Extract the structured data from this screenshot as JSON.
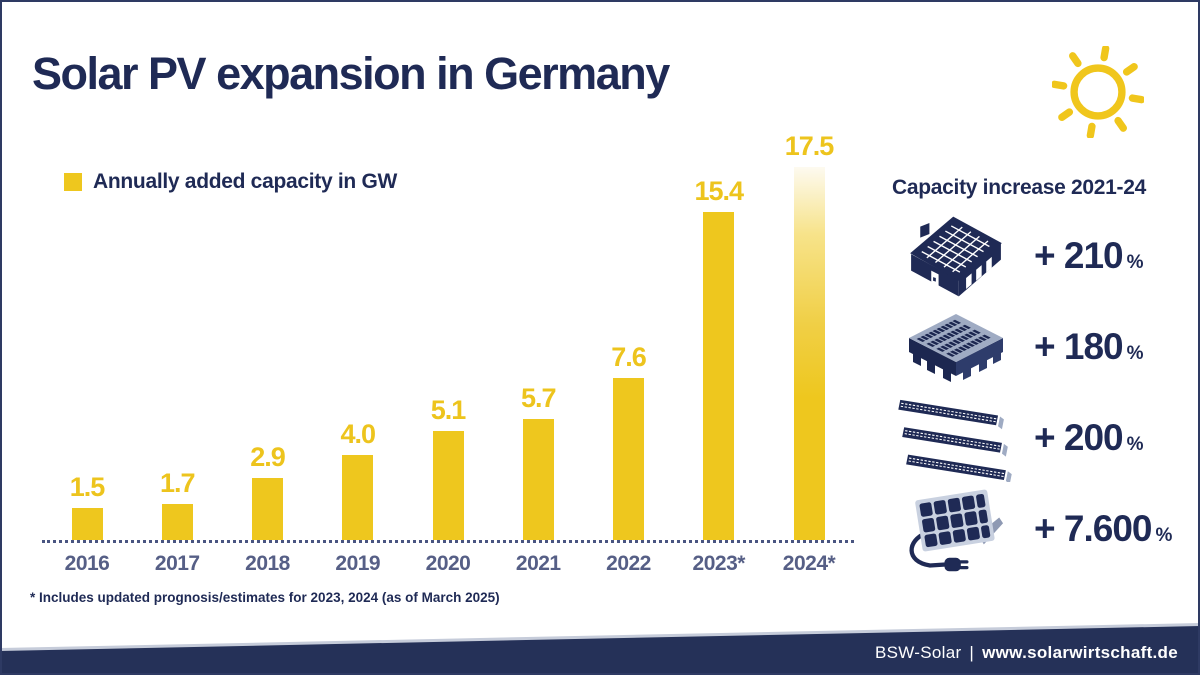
{
  "title": "Solar PV expansion in Germany",
  "legend": {
    "label": "Annually added capacity in GW"
  },
  "chart_data": {
    "type": "bar",
    "categories": [
      "2016",
      "2017",
      "2018",
      "2019",
      "2020",
      "2021",
      "2022",
      "2023*",
      "2024*"
    ],
    "values": [
      1.5,
      1.7,
      2.9,
      4.0,
      5.1,
      5.7,
      7.6,
      15.4,
      17.5
    ],
    "value_labels": [
      "1.5",
      "1.7",
      "2.9",
      "4.0",
      "5.1",
      "5.7",
      "7.6",
      "15.4",
      "17.5"
    ],
    "title": "Annually added capacity in GW",
    "xlabel": "",
    "ylabel": "GW",
    "ylim": [
      0,
      18
    ],
    "grid": false,
    "legend_position": "top-left",
    "bar_color": "#eec71e",
    "last_bar_gradient": true,
    "note": "2023 and 2024 marked with asterisk (prognosis/estimates)"
  },
  "side_panel": {
    "heading": "Capacity increase 2021-24",
    "items": [
      {
        "icon": "rooftop-house-icon",
        "value": "+ 210",
        "unit": "%"
      },
      {
        "icon": "commercial-rooftop-icon",
        "value": "+ 180",
        "unit": "%"
      },
      {
        "icon": "ground-mounted-icon",
        "value": "+ 200",
        "unit": "%"
      },
      {
        "icon": "balcony-module-icon",
        "value": "+ 7.600",
        "unit": "%"
      }
    ]
  },
  "footnote": "* Includes updated prognosis/estimates for 2023, 2024 (as of March 2025)",
  "footer": {
    "org": "BSW-Solar",
    "separator": "|",
    "url": "www.solarwirtschaft.de"
  },
  "colors": {
    "navy": "#1f2a55",
    "slate": "#565f86",
    "yellow": "#eec71e",
    "footer_bg": "#253158",
    "icon_light": "#9fabc3",
    "panel_frame": "#c9d1e0"
  }
}
